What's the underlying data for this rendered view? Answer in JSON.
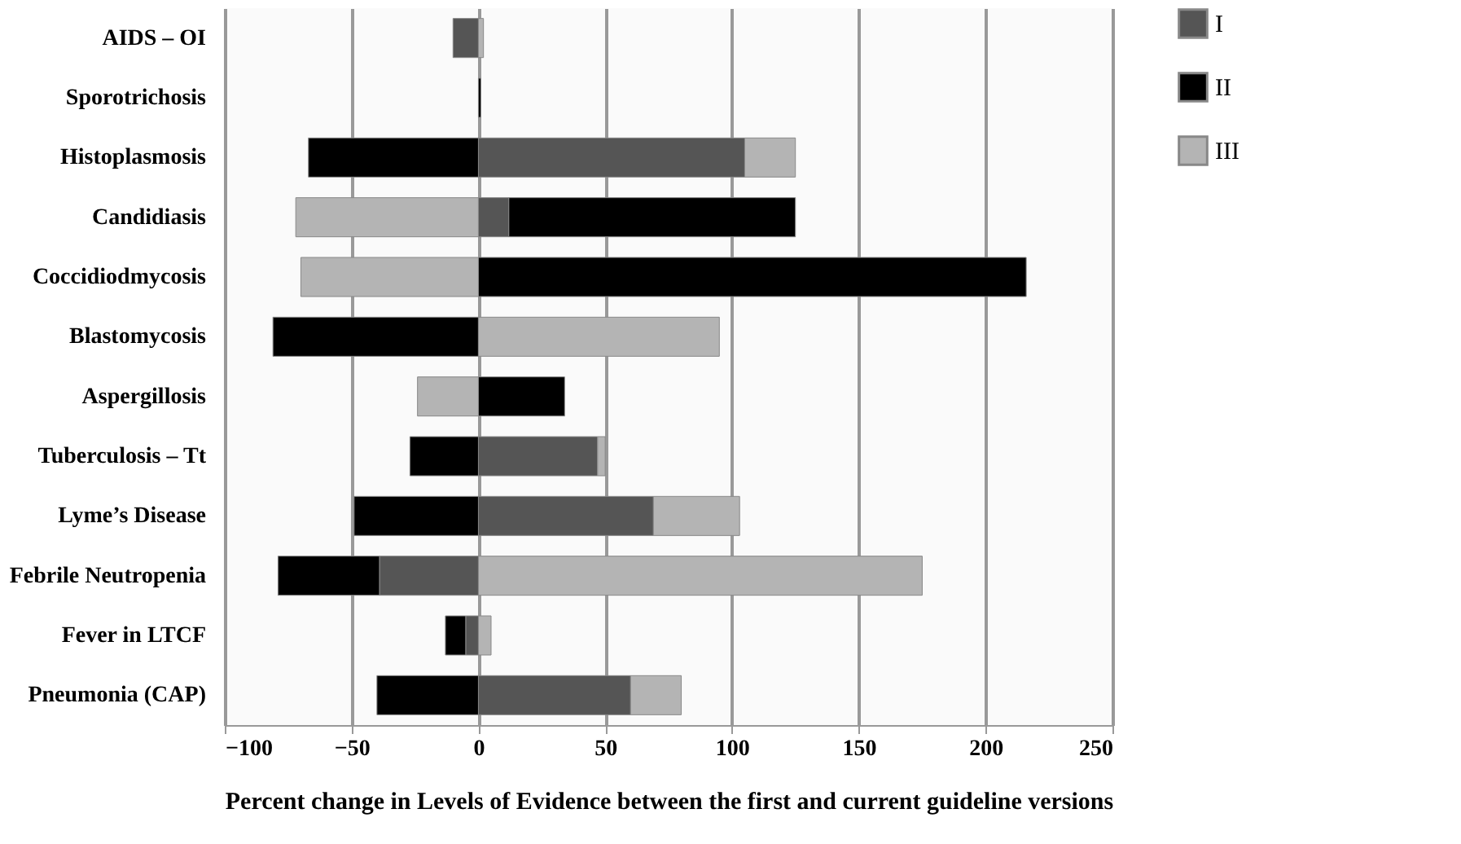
{
  "chart_data": {
    "type": "bar",
    "orientation": "horizontal",
    "stacked": true,
    "categories": [
      "AIDS – OI",
      "Sporotrichosis",
      "Histoplasmosis",
      "Candidiasis",
      "Coccidiodmycosis",
      "Blastomycosis",
      "Aspergillosis",
      "Tuberculosis – Tt",
      "Lyme’s Disease",
      "Febrile Neutropenia",
      "Fever in LTCF",
      "Pneumonia (CAP)"
    ],
    "series": [
      {
        "name": "I",
        "color": "#555555",
        "values": [
          -10,
          null,
          105,
          12,
          null,
          null,
          null,
          47,
          69,
          -39,
          -5,
          60
        ]
      },
      {
        "name": "II",
        "color": "#000000",
        "values": [
          null,
          1,
          -67,
          113,
          216,
          -81,
          34,
          -27,
          -49,
          -40,
          -8,
          -40
        ]
      },
      {
        "name": "III",
        "color": "#b4b4b4",
        "values": [
          2,
          null,
          20,
          -72,
          -70,
          95,
          -24,
          3,
          34,
          175,
          5,
          20
        ]
      }
    ],
    "xlim": [
      -100,
      250
    ],
    "xticks": [
      -100,
      -50,
      0,
      50,
      100,
      150,
      200,
      250
    ],
    "xlabel": "Percent change in Levels of Evidence between the first and current guideline versions",
    "grid": "x",
    "legend": "right"
  }
}
